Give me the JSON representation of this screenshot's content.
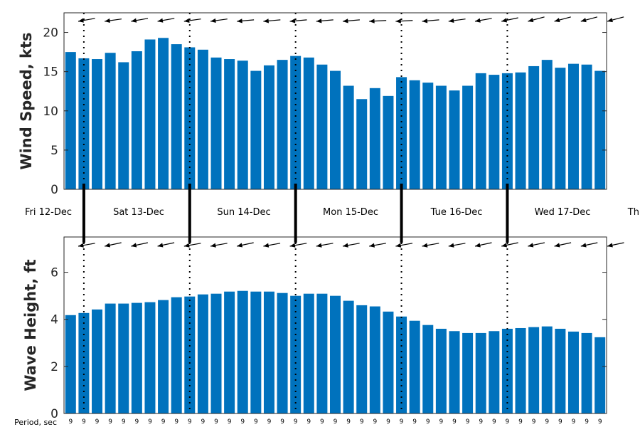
{
  "chart_data": [
    {
      "type": "bar",
      "ylabel": "Wind Speed, kts",
      "ylim": [
        0,
        22.5
      ],
      "yticks": [
        0,
        5,
        10,
        15,
        20
      ],
      "bar_color": "#0072bd",
      "values": [
        17.5,
        16.7,
        16.6,
        17.4,
        16.2,
        17.6,
        19.1,
        19.3,
        18.5,
        18.1,
        17.8,
        16.8,
        16.6,
        16.4,
        15.1,
        15.8,
        16.5,
        17.0,
        16.8,
        15.9,
        15.1,
        13.2,
        11.5,
        12.9,
        11.9,
        14.3,
        13.9,
        13.6,
        13.2,
        12.6,
        13.2,
        14.8,
        14.6,
        14.8,
        14.9,
        15.7,
        16.5,
        15.5,
        16.0,
        15.9,
        15.1
      ],
      "direction_arrows_tilt_deg": [
        -10,
        -8,
        -10,
        -10,
        -8,
        -8,
        -5,
        -5,
        -5,
        -5,
        -5,
        -3,
        -3,
        -5,
        -8,
        -10,
        -12,
        -15,
        -15,
        -15,
        -15
      ]
    },
    {
      "type": "bar",
      "ylabel": "Wave Height, ft",
      "ylim": [
        0,
        7.5
      ],
      "yticks": [
        0,
        2,
        4,
        6
      ],
      "bar_color": "#0072bd",
      "values": [
        4.18,
        4.27,
        4.42,
        4.67,
        4.67,
        4.7,
        4.73,
        4.82,
        4.94,
        4.97,
        5.06,
        5.09,
        5.18,
        5.21,
        5.18,
        5.18,
        5.12,
        5.0,
        5.09,
        5.09,
        5.0,
        4.79,
        4.6,
        4.55,
        4.33,
        4.12,
        3.94,
        3.76,
        3.6,
        3.5,
        3.42,
        3.42,
        3.5,
        3.6,
        3.63,
        3.67,
        3.7,
        3.6,
        3.48,
        3.42,
        3.24
      ],
      "direction_arrows_tilt_deg": [
        -10,
        -12,
        -12,
        -12,
        -10,
        -10,
        -12,
        -10,
        -10,
        -10,
        -10,
        -10,
        -10,
        -10,
        -10,
        -12,
        -12,
        -12,
        -12,
        -12,
        -12
      ]
    }
  ],
  "days": [
    "Fri 12-Dec",
    "Sat 13-Dec",
    "Sun 14-Dec",
    "Mon 15-Dec",
    "Tue 16-Dec",
    "Wed 17-Dec",
    "Thu"
  ],
  "day_boundaries_after_bar": [
    1,
    9,
    17,
    25,
    33
  ],
  "period_label": "Period, sec",
  "periods": [
    9,
    9,
    9,
    9,
    9,
    9,
    9,
    9,
    9,
    9,
    9,
    9,
    9,
    9,
    9,
    9,
    9,
    9,
    9,
    9,
    9,
    9,
    9,
    9,
    9,
    9,
    9,
    9,
    9,
    9,
    9,
    9,
    9,
    9,
    9,
    9,
    9,
    9,
    9,
    9,
    9
  ]
}
